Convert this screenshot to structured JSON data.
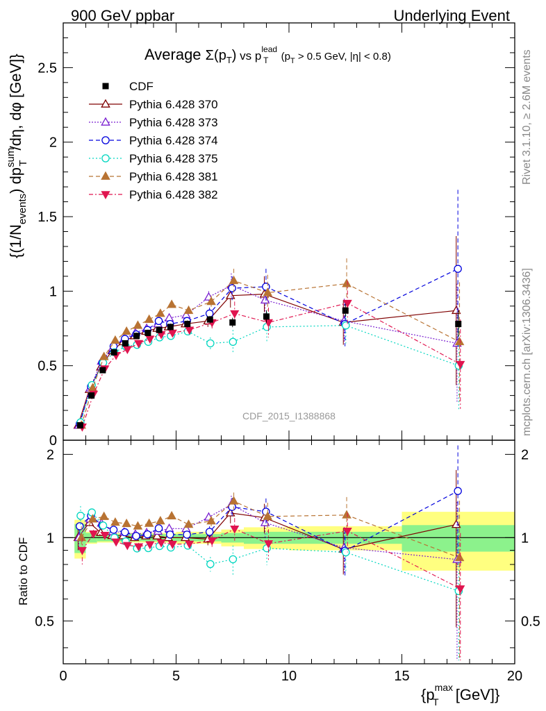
{
  "header": {
    "left": "900 GeV ppbar",
    "right": "Underlying Event"
  },
  "side": {
    "rivet": "Rivet 3.1.10, ≥ 2.6M events",
    "mcplots": "mcplots.cern.ch [arXiv:1306.3436]"
  },
  "watermark": "CDF_2015_I1388868",
  "chart_data": {
    "type": "scatter",
    "title_parts": {
      "prefix": "Average",
      "sigma": "Σ(p",
      "sigma_sub": "T",
      "sigma_close": ")",
      "vs": " vs ",
      "plead": "p",
      "plead_sup": "lead",
      "plead_sub": "T",
      "cut1": " (p",
      "cut1_sub": "T",
      "cut2": " > 0.5 GeV, |η| < 0.8)"
    },
    "ylabel": "{(1/N_events) dp_T^sum/dη, dφ [GeV]}",
    "ylabel_parts": {
      "a": "{(1/N",
      "a_sub": "events",
      "b": ") dp",
      "b_sup": "sum",
      "b_sub": "T",
      "c": "/dη, dφ [GeV]}"
    },
    "xlabel_parts": {
      "a": "{p",
      "a_sup": "max",
      "a_sub": "T",
      "b": " [GeV]}"
    },
    "ratio_ylabel": "Ratio to CDF",
    "xlim": [
      0,
      20
    ],
    "ylim": [
      0,
      2.8
    ],
    "ratio_ylim": [
      0.35,
      2.25
    ],
    "xticks": [
      "0",
      "5",
      "10",
      "15",
      "20"
    ],
    "yticks": [
      "0",
      "0.5",
      "1",
      "1.5",
      "2",
      "2.5"
    ],
    "ratio_yticks": [
      "0.5",
      "1",
      "2"
    ],
    "legend_position": "top-left",
    "x": [
      0.75,
      1.25,
      1.75,
      2.25,
      2.75,
      3.25,
      3.75,
      4.25,
      4.75,
      5.5,
      6.5,
      7.5,
      9.0,
      12.5,
      17.5
    ],
    "bin_edges": [
      0.5,
      1.0,
      1.5,
      2.0,
      2.5,
      3.0,
      3.5,
      4.0,
      4.5,
      5.0,
      6.0,
      7.0,
      8.0,
      10.0,
      15.0,
      20.0
    ],
    "data": {
      "name": "CDF",
      "color": "#000000",
      "values": [
        0.1,
        0.3,
        0.47,
        0.59,
        0.65,
        0.7,
        0.72,
        0.74,
        0.76,
        0.78,
        0.81,
        0.79,
        0.83,
        0.87,
        0.78
      ],
      "band_inner": [
        0.12,
        0.04,
        0.03,
        0.03,
        0.03,
        0.03,
        0.03,
        0.03,
        0.03,
        0.03,
        0.03,
        0.04,
        0.05,
        0.05,
        0.11
      ],
      "band_outer": [
        0.16,
        0.05,
        0.04,
        0.04,
        0.04,
        0.04,
        0.04,
        0.04,
        0.04,
        0.05,
        0.05,
        0.07,
        0.09,
        0.1,
        0.24
      ]
    },
    "series": [
      {
        "name": "Pythia 6.428 370",
        "color": "#7f0000",
        "marker": "triangle-open",
        "dash": "",
        "values": [
          0.1,
          0.34,
          0.49,
          0.6,
          0.66,
          0.7,
          0.73,
          0.75,
          0.76,
          0.78,
          0.8,
          0.97,
          0.98,
          0.79,
          0.87
        ],
        "errors": [
          0.01,
          0.01,
          0.01,
          0.01,
          0.01,
          0.02,
          0.02,
          0.02,
          0.02,
          0.02,
          0.04,
          0.08,
          0.12,
          0.15,
          0.5
        ]
      },
      {
        "name": "Pythia 6.428 373",
        "color": "#7a1fd0",
        "marker": "triangle-open",
        "dash": "2,2",
        "values": [
          0.1,
          0.35,
          0.53,
          0.62,
          0.68,
          0.72,
          0.75,
          0.78,
          0.82,
          0.84,
          0.96,
          1.04,
          0.94,
          0.8,
          0.65
        ],
        "errors": [
          0.01,
          0.01,
          0.01,
          0.01,
          0.01,
          0.02,
          0.02,
          0.02,
          0.02,
          0.02,
          0.04,
          0.08,
          0.12,
          0.15,
          0.4
        ]
      },
      {
        "name": "Pythia 6.428 374",
        "color": "#0000dd",
        "marker": "circle-open",
        "dash": "6,4",
        "values": [
          0.11,
          0.36,
          0.52,
          0.63,
          0.68,
          0.71,
          0.74,
          0.8,
          0.78,
          0.8,
          0.85,
          1.02,
          1.03,
          0.78,
          1.15
        ],
        "errors": [
          0.01,
          0.01,
          0.01,
          0.01,
          0.01,
          0.02,
          0.02,
          0.02,
          0.02,
          0.02,
          0.04,
          0.08,
          0.12,
          0.15,
          0.53
        ]
      },
      {
        "name": "Pythia 6.428 375",
        "color": "#00d6c0",
        "marker": "circle-open",
        "dash": "2,3",
        "values": [
          0.12,
          0.37,
          0.52,
          0.59,
          0.63,
          0.64,
          0.66,
          0.69,
          0.7,
          0.73,
          0.65,
          0.66,
          0.76,
          0.77,
          0.5
        ],
        "errors": [
          0.01,
          0.01,
          0.01,
          0.01,
          0.01,
          0.02,
          0.02,
          0.02,
          0.02,
          0.02,
          0.04,
          0.08,
          0.1,
          0.12,
          0.3
        ]
      },
      {
        "name": "Pythia 6.428 381",
        "color": "#b87333",
        "marker": "triangle-filled",
        "dash": "6,4",
        "values": [
          0.1,
          0.35,
          0.56,
          0.67,
          0.73,
          0.77,
          0.81,
          0.85,
          0.91,
          0.87,
          0.93,
          1.07,
          0.99,
          1.05,
          0.66
        ],
        "errors": [
          0.01,
          0.01,
          0.01,
          0.01,
          0.01,
          0.02,
          0.02,
          0.02,
          0.02,
          0.02,
          0.04,
          0.08,
          0.12,
          0.17,
          0.4
        ]
      },
      {
        "name": "Pythia 6.428 382",
        "color": "#e0154f",
        "marker": "triangle-down-filled",
        "dash": "6,3,2,3",
        "values": [
          0.09,
          0.31,
          0.48,
          0.57,
          0.61,
          0.65,
          0.68,
          0.71,
          0.72,
          0.74,
          0.79,
          0.85,
          0.79,
          0.92,
          0.51
        ],
        "errors": [
          0.01,
          0.01,
          0.01,
          0.01,
          0.01,
          0.02,
          0.02,
          0.02,
          0.02,
          0.02,
          0.04,
          0.08,
          0.1,
          0.15,
          0.3
        ]
      }
    ]
  }
}
